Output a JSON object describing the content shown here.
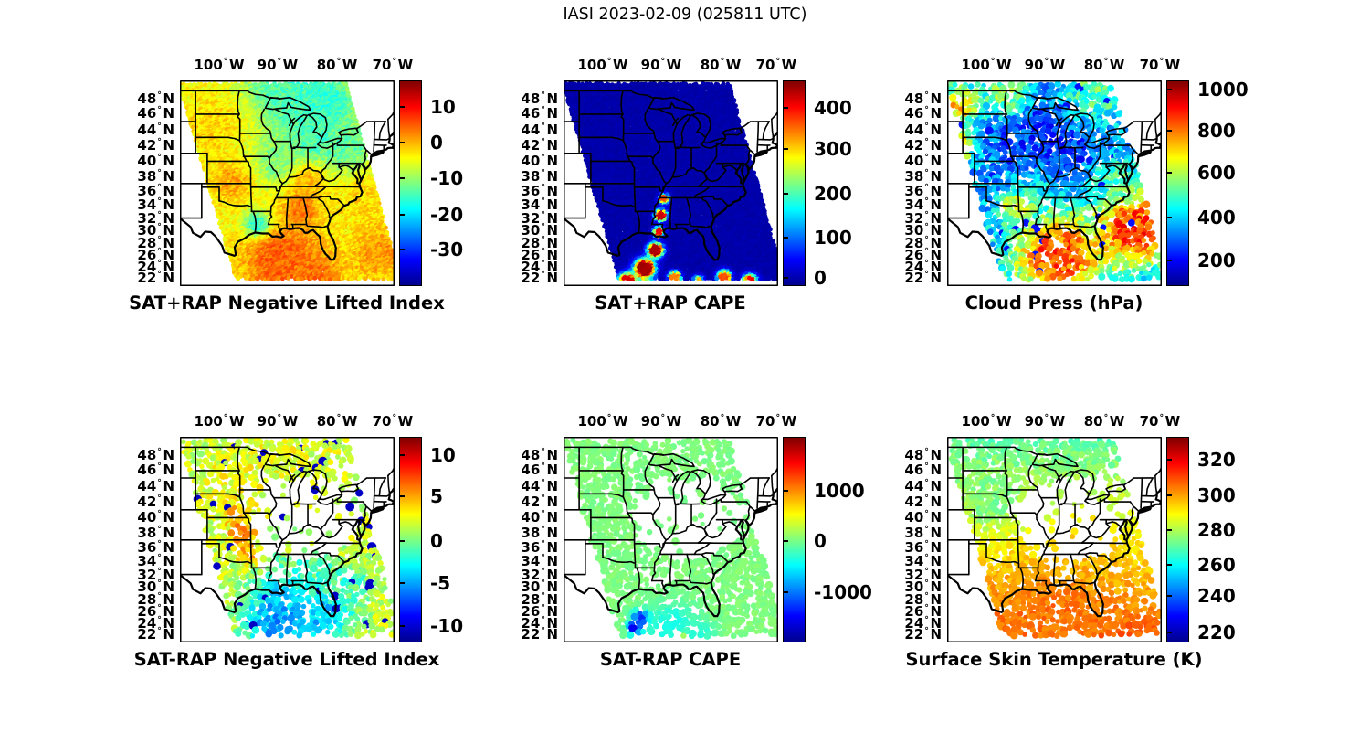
{
  "figure": {
    "title": "IASI 2023-02-09 (025811 UTC)",
    "background": "#ffffff",
    "text_color": "#000000"
  },
  "colormap": {
    "name": "jet",
    "stops": [
      [
        0,
        "#00008f"
      ],
      [
        0.125,
        "#0000ff"
      ],
      [
        0.375,
        "#00ffff"
      ],
      [
        0.625,
        "#ffff00"
      ],
      [
        0.875,
        "#ff0000"
      ],
      [
        1,
        "#7f0000"
      ]
    ]
  },
  "axes": {
    "degree_symbol": "°",
    "lon_ticks": [
      {
        "num": "100",
        "hemi": "W",
        "x": 0.183
      },
      {
        "num": "90",
        "hemi": "W",
        "x": 0.455
      },
      {
        "num": "80",
        "hemi": "W",
        "x": 0.732
      },
      {
        "num": "70",
        "hemi": "W",
        "x": 0.991
      }
    ],
    "lat_ticks": [
      {
        "num": "48",
        "hemi": "N",
        "y": 0.089
      },
      {
        "num": "46",
        "hemi": "N",
        "y": 0.162
      },
      {
        "num": "44",
        "hemi": "N",
        "y": 0.238
      },
      {
        "num": "42",
        "hemi": "N",
        "y": 0.316
      },
      {
        "num": "40",
        "hemi": "N",
        "y": 0.393
      },
      {
        "num": "38",
        "hemi": "N",
        "y": 0.466
      },
      {
        "num": "36",
        "hemi": "N",
        "y": 0.537
      },
      {
        "num": "34",
        "hemi": "N",
        "y": 0.605
      },
      {
        "num": "32",
        "hemi": "N",
        "y": 0.669
      },
      {
        "num": "30",
        "hemi": "N",
        "y": 0.731
      },
      {
        "num": "28",
        "hemi": "N",
        "y": 0.791
      },
      {
        "num": "26",
        "hemi": "N",
        "y": 0.849
      },
      {
        "num": "24",
        "hemi": "N",
        "y": 0.906
      },
      {
        "num": "22",
        "hemi": "N",
        "y": 0.961
      }
    ]
  },
  "chart_data": {
    "type": "map-scatter",
    "title": "IASI 2023-02-09 (025811 UTC)",
    "grid": {
      "rows": 2,
      "cols": 3
    },
    "region": {
      "lon_range_deg_w": [
        107,
        65
      ],
      "lat_range_deg_n": [
        21,
        50
      ]
    },
    "colormap": "jet",
    "panels": [
      {
        "title": "SAT+RAP Negative Lifted Index",
        "row": 0,
        "col": 0,
        "colorbar": {
          "ticks": [
            {
              "label": "10",
              "pos": 0.13
            },
            {
              "label": "0",
              "pos": 0.3
            },
            {
              "label": "-10",
              "pos": 0.475
            },
            {
              "label": "-20",
              "pos": 0.655
            },
            {
              "label": "-30",
              "pos": 0.82
            }
          ]
        },
        "field": {
          "style": "dense",
          "base": 0.62,
          "noise": 0.05,
          "seed": 11,
          "features": [
            {
              "cx": 0.5,
              "cy": 0.05,
              "r": 0.2,
              "t": 0.46
            },
            {
              "cx": 0.68,
              "cy": 0.12,
              "r": 0.14,
              "t": 0.42
            },
            {
              "cx": 0.62,
              "cy": 0.28,
              "r": 0.15,
              "t": 0.44
            },
            {
              "cx": 0.47,
              "cy": 0.4,
              "r": 0.12,
              "t": 0.5
            },
            {
              "cx": 0.78,
              "cy": 0.34,
              "r": 0.11,
              "t": 0.47
            },
            {
              "cx": 0.15,
              "cy": 0.22,
              "r": 0.14,
              "t": 0.66
            },
            {
              "cx": 0.24,
              "cy": 0.5,
              "r": 0.09,
              "t": 0.71
            },
            {
              "cx": 0.6,
              "cy": 0.5,
              "r": 0.09,
              "t": 0.68
            },
            {
              "cx": 0.57,
              "cy": 0.63,
              "r": 0.08,
              "t": 0.75
            },
            {
              "cx": 0.48,
              "cy": 0.88,
              "r": 0.18,
              "t": 0.78
            },
            {
              "cx": 0.36,
              "cy": 0.7,
              "r": 0.06,
              "t": 0.42
            },
            {
              "cx": 0.88,
              "cy": 0.6,
              "r": 0.13,
              "t": 0.66
            },
            {
              "cx": 0.93,
              "cy": 0.85,
              "r": 0.12,
              "t": 0.72
            },
            {
              "cx": 0.62,
              "cy": 0.97,
              "r": 0.13,
              "t": 0.76
            }
          ]
        }
      },
      {
        "title": "SAT+RAP CAPE",
        "row": 0,
        "col": 1,
        "colorbar": {
          "ticks": [
            {
              "label": "400",
              "pos": 0.135
            },
            {
              "label": "300",
              "pos": 0.335
            },
            {
              "label": "200",
              "pos": 0.55
            },
            {
              "label": "100",
              "pos": 0.765
            },
            {
              "label": "0",
              "pos": 0.958
            }
          ]
        },
        "field": {
          "style": "dense",
          "base": 0.03,
          "noise": 0.012,
          "seed": 22,
          "features": [
            {
              "cx": 0.47,
              "cy": 0.58,
              "r": 0.03,
              "t": 0.8,
              "sharp": 1
            },
            {
              "cx": 0.455,
              "cy": 0.66,
              "r": 0.035,
              "t": 0.93,
              "sharp": 1
            },
            {
              "cx": 0.445,
              "cy": 0.74,
              "r": 0.03,
              "t": 0.88,
              "sharp": 1
            },
            {
              "cx": 0.43,
              "cy": 0.83,
              "r": 0.045,
              "t": 0.95,
              "sharp": 1
            },
            {
              "cx": 0.38,
              "cy": 0.92,
              "r": 0.06,
              "t": 0.96,
              "sharp": 1
            },
            {
              "cx": 0.3,
              "cy": 0.985,
              "r": 0.055,
              "t": 0.9,
              "sharp": 1
            },
            {
              "cx": 0.52,
              "cy": 0.96,
              "r": 0.035,
              "t": 0.75,
              "sharp": 1
            },
            {
              "cx": 0.63,
              "cy": 0.985,
              "r": 0.035,
              "t": 0.7,
              "sharp": 1
            },
            {
              "cx": 0.75,
              "cy": 0.96,
              "r": 0.04,
              "t": 0.8,
              "sharp": 1
            },
            {
              "cx": 0.87,
              "cy": 0.985,
              "r": 0.045,
              "t": 0.88,
              "sharp": 1
            }
          ]
        }
      },
      {
        "title": "Cloud Press (hPa)",
        "row": 0,
        "col": 2,
        "colorbar": {
          "ticks": [
            {
              "label": "1000",
              "pos": 0.045
            },
            {
              "label": "800",
              "pos": 0.245
            },
            {
              "label": "600",
              "pos": 0.45
            },
            {
              "label": "400",
              "pos": 0.665
            },
            {
              "label": "200",
              "pos": 0.875
            }
          ]
        },
        "field": {
          "style": "dots",
          "base": 0.3,
          "noise": 0.1,
          "dropout": 0.15,
          "seed": 33,
          "scatter": {
            "p": 0.02,
            "t": 0.14,
            "r": 4.0
          },
          "holes": [
            {
              "cx": 0.88,
              "cy": 0.15,
              "rx": 0.13,
              "ry": 0.16,
              "drop": 0.55
            }
          ],
          "features": [
            {
              "cx": 0.5,
              "cy": 0.28,
              "r": 0.26,
              "t": 0.17
            },
            {
              "cx": 0.42,
              "cy": 0.55,
              "r": 0.11,
              "t": 0.33
            },
            {
              "cx": 0.32,
              "cy": 0.62,
              "r": 0.07,
              "t": 0.55
            },
            {
              "cx": 0.52,
              "cy": 0.86,
              "r": 0.2,
              "t": 0.78
            },
            {
              "cx": 0.88,
              "cy": 0.72,
              "r": 0.17,
              "t": 0.8
            },
            {
              "cx": 0.78,
              "cy": 0.47,
              "r": 0.09,
              "t": 0.45
            },
            {
              "cx": 0.06,
              "cy": 0.12,
              "r": 0.09,
              "t": 0.66
            },
            {
              "cx": 0.05,
              "cy": 0.32,
              "r": 0.06,
              "t": 0.76
            },
            {
              "cx": 0.7,
              "cy": 0.05,
              "r": 0.16,
              "t": 0.45
            },
            {
              "cx": 0.28,
              "cy": 0.05,
              "r": 0.11,
              "t": 0.5
            }
          ]
        }
      },
      {
        "title": "SAT-RAP Negative Lifted Index",
        "row": 1,
        "col": 0,
        "colorbar": {
          "ticks": [
            {
              "label": "10",
              "pos": 0.09
            },
            {
              "label": "5",
              "pos": 0.29
            },
            {
              "label": "0",
              "pos": 0.505
            },
            {
              "label": "-5",
              "pos": 0.71
            },
            {
              "label": "-10",
              "pos": 0.92
            }
          ]
        },
        "field": {
          "style": "dots",
          "base": 0.57,
          "noise": 0.07,
          "dropout": 0.22,
          "seed": 44,
          "scatter": {
            "p": 0.035,
            "t": 0.06,
            "r": 4.4
          },
          "holes": [
            {
              "cx": 0.58,
              "cy": 0.4,
              "rx": 0.26,
              "ry": 0.2,
              "drop": 0.92
            },
            {
              "cx": 0.4,
              "cy": 0.3,
              "rx": 0.12,
              "ry": 0.12,
              "drop": 0.6
            },
            {
              "cx": 0.75,
              "cy": 0.28,
              "rx": 0.14,
              "ry": 0.15,
              "drop": 0.55
            },
            {
              "cx": 0.46,
              "cy": 0.62,
              "rx": 0.12,
              "ry": 0.1,
              "drop": 0.55
            }
          ],
          "features": [
            {
              "cx": 0.5,
              "cy": 0.06,
              "r": 0.22,
              "t": 0.6
            },
            {
              "cx": 0.25,
              "cy": 0.25,
              "r": 0.14,
              "t": 0.62
            },
            {
              "cx": 0.29,
              "cy": 0.47,
              "r": 0.055,
              "t": 0.78
            },
            {
              "cx": 0.32,
              "cy": 0.57,
              "r": 0.05,
              "t": 0.73
            },
            {
              "cx": 0.27,
              "cy": 0.38,
              "r": 0.05,
              "t": 0.7
            },
            {
              "cx": 0.52,
              "cy": 0.78,
              "r": 0.17,
              "t": 0.38
            },
            {
              "cx": 0.45,
              "cy": 0.92,
              "r": 0.14,
              "t": 0.28
            },
            {
              "cx": 0.68,
              "cy": 0.88,
              "r": 0.12,
              "t": 0.32
            },
            {
              "cx": 0.8,
              "cy": 0.72,
              "r": 0.1,
              "t": 0.45
            },
            {
              "cx": 0.62,
              "cy": 0.65,
              "r": 0.09,
              "t": 0.45
            }
          ]
        }
      },
      {
        "title": "SAT-RAP CAPE",
        "row": 1,
        "col": 1,
        "colorbar": {
          "ticks": [
            {
              "label": "1000",
              "pos": 0.26
            },
            {
              "label": "0",
              "pos": 0.505
            },
            {
              "label": "-1000",
              "pos": 0.755
            }
          ]
        },
        "field": {
          "style": "dots",
          "base": 0.5,
          "noise": 0.015,
          "dropout": 0.22,
          "seed": 55,
          "holes": [
            {
              "cx": 0.58,
              "cy": 0.4,
              "rx": 0.26,
              "ry": 0.2,
              "drop": 0.92
            },
            {
              "cx": 0.4,
              "cy": 0.3,
              "rx": 0.12,
              "ry": 0.12,
              "drop": 0.6
            },
            {
              "cx": 0.75,
              "cy": 0.28,
              "rx": 0.14,
              "ry": 0.15,
              "drop": 0.55
            },
            {
              "cx": 0.46,
              "cy": 0.62,
              "rx": 0.12,
              "ry": 0.1,
              "drop": 0.55
            }
          ],
          "features": [
            {
              "cx": 0.5,
              "cy": 0.93,
              "r": 0.12,
              "t": 0.4
            },
            {
              "cx": 0.62,
              "cy": 0.97,
              "r": 0.08,
              "t": 0.42
            },
            {
              "cx": 0.36,
              "cy": 0.88,
              "r": 0.035,
              "t": 0.17
            },
            {
              "cx": 0.33,
              "cy": 0.93,
              "r": 0.03,
              "t": 0.12
            },
            {
              "cx": 0.56,
              "cy": 0.985,
              "r": 0.02,
              "t": 0.63
            }
          ]
        }
      },
      {
        "title": "Surface Skin Temperature (K)",
        "row": 1,
        "col": 2,
        "colorbar": {
          "ticks": [
            {
              "label": "320",
              "pos": 0.11
            },
            {
              "label": "300",
              "pos": 0.285
            },
            {
              "label": "280",
              "pos": 0.455
            },
            {
              "label": "260",
              "pos": 0.62
            },
            {
              "label": "240",
              "pos": 0.775
            },
            {
              "label": "220",
              "pos": 0.95
            }
          ]
        },
        "field": {
          "style": "dots",
          "grad": [
            0.46,
            0.8
          ],
          "noise": 0.035,
          "dropout": 0.2,
          "seed": 66,
          "holes": [
            {
              "cx": 0.58,
              "cy": 0.4,
              "rx": 0.26,
              "ry": 0.2,
              "drop": 0.9
            },
            {
              "cx": 0.4,
              "cy": 0.3,
              "rx": 0.12,
              "ry": 0.12,
              "drop": 0.55
            },
            {
              "cx": 0.75,
              "cy": 0.28,
              "rx": 0.14,
              "ry": 0.15,
              "drop": 0.55
            },
            {
              "cx": 0.52,
              "cy": 0.6,
              "rx": 0.11,
              "ry": 0.12,
              "drop": 0.65
            }
          ],
          "features": [
            {
              "cx": 0.65,
              "cy": 0.55,
              "r": 0.14,
              "t": 0.68
            },
            {
              "cx": 0.5,
              "cy": 0.9,
              "r": 0.22,
              "t": 0.76
            },
            {
              "cx": 0.2,
              "cy": 0.3,
              "r": 0.14,
              "t": 0.5
            }
          ]
        }
      }
    ]
  }
}
